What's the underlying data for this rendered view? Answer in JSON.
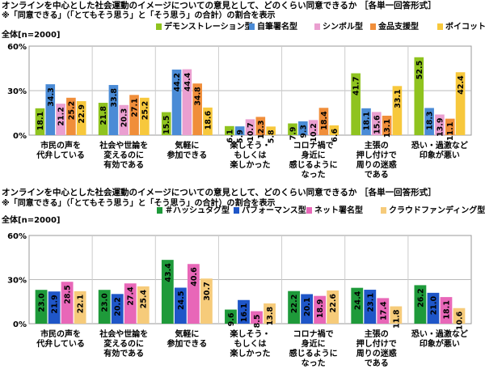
{
  "chart_data": [
    {
      "type": "bar",
      "title": "オンラインを中心とした社会運動のイメージについての意見として、どのくらい同意できるか",
      "answer_format": "［各単一回答形式］",
      "note": "※「同意できる」（「とてもそう思う」と「そう思う」の合計）の割合を表示",
      "base_label": "全体[n=2000]",
      "ylim": [
        0,
        60
      ],
      "yticks": [
        "0%",
        "30%",
        "60%"
      ],
      "grid": true,
      "legend_position": "top",
      "categories": [
        "市民の声を\n代弁している",
        "社会や世論を\n変えるのに\n有効である",
        "気軽に\n参加できる",
        "楽しそう・\nもしくは\n楽しかった",
        "コロナ禍で\n身近に\n感じるように\nなった",
        "主張の\n押し付けで\n周りの迷惑\nである",
        "恐い・過激など\n印象が悪い"
      ],
      "series": [
        {
          "name": "デモンストレーション型",
          "color": "#8fc31f",
          "values": [
            18.1,
            21.8,
            15.5,
            6.1,
            7.9,
            41.7,
            52.5
          ]
        },
        {
          "name": "自筆署名型",
          "color": "#4a8bd6",
          "values": [
            34.3,
            33.8,
            44.2,
            5.9,
            9.3,
            18.1,
            18.3
          ]
        },
        {
          "name": "シンボル型",
          "color": "#ea9fd0",
          "values": [
            21.2,
            20.3,
            44.4,
            10.7,
            10.2,
            15.6,
            13.9
          ]
        },
        {
          "name": "金品支援型",
          "color": "#f08e3a",
          "values": [
            25.2,
            27.1,
            34.8,
            12.3,
            18.4,
            13.1,
            11.1
          ]
        },
        {
          "name": "ボイコット型",
          "color": "#f7c83c",
          "values": [
            22.9,
            25.2,
            18.6,
            5.8,
            6.6,
            33.1,
            42.4
          ]
        }
      ]
    },
    {
      "type": "bar",
      "title": "オンラインを中心とした社会運動のイメージについての意見として、どのくらい同意できるか",
      "answer_format": "［各単一回答形式］",
      "note": "※「同意できる」（「とてもそう思う」と「そう思う」の合計）の割合を表示",
      "base_label": "全体[n=2000]",
      "ylim": [
        0,
        60
      ],
      "yticks": [
        "0%",
        "30%",
        "60%"
      ],
      "grid": true,
      "legend_position": "top",
      "categories": [
        "市民の声を\n代弁している",
        "社会や世論を\n変えるのに\n有効である",
        "気軽に\n参加できる",
        "楽しそう・\nもしくは\n楽しかった",
        "コロナ禍で\n身近に\n感じるように\nなった",
        "主張の\n押し付けで\n周りの迷惑\nである",
        "恐い・過激など\n印象が悪い"
      ],
      "series": [
        {
          "name": "＃ハッシュタグ型",
          "color": "#1e9a3a",
          "values": [
            23.0,
            23.0,
            43.4,
            9.6,
            22.2,
            24.4,
            26.2
          ]
        },
        {
          "name": "パフォーマンス型",
          "color": "#1f56c8",
          "values": [
            21.9,
            20.2,
            24.5,
            16.1,
            20.1,
            23.1,
            21.0
          ]
        },
        {
          "name": "ネット署名型",
          "color": "#e867b8",
          "values": [
            28.5,
            27.4,
            40.6,
            8.5,
            18.9,
            17.4,
            18.1
          ]
        },
        {
          "name": "クラウドファンディング型",
          "color": "#f6cb7a",
          "values": [
            22.1,
            25.4,
            30.7,
            13.8,
            22.6,
            11.8,
            10.6
          ]
        }
      ]
    }
  ]
}
